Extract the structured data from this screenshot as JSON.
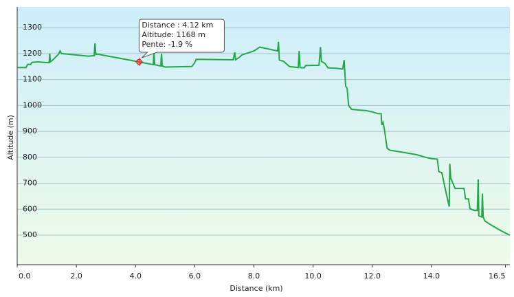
{
  "chart_data": {
    "type": "line",
    "xlabel": "Distance  (km)",
    "ylabel": "Altitude  (m)",
    "xlim": [
      0,
      16.65
    ],
    "ylim": [
      386,
      1380
    ],
    "xticks": [
      {
        "value": 0,
        "label": "0.0"
      },
      {
        "value": 2,
        "label": "2.0"
      },
      {
        "value": 4,
        "label": "4.0"
      },
      {
        "value": 6,
        "label": "6.0"
      },
      {
        "value": 8,
        "label": "8.0"
      },
      {
        "value": 10,
        "label": "10.0"
      },
      {
        "value": 12,
        "label": "12.0"
      },
      {
        "value": 14,
        "label": "14.0"
      },
      16.5
    ],
    "yticks": [
      500,
      600,
      700,
      800,
      900,
      1000,
      1100,
      1200,
      1300
    ],
    "grid": true,
    "x": [
      0,
      0.3,
      0.35,
      0.45,
      0.5,
      0.7,
      1.0,
      1.08,
      1.1,
      1.12,
      1.2,
      1.4,
      1.45,
      1.5,
      2.4,
      2.6,
      2.63,
      2.66,
      2.7,
      4.12,
      4.6,
      4.62,
      4.65,
      4.85,
      4.88,
      4.9,
      5.0,
      5.9,
      6.0,
      6.05,
      7.3,
      7.35,
      7.38,
      7.5,
      7.6,
      8.0,
      8.2,
      8.8,
      8.83,
      8.86,
      9.0,
      9.2,
      9.5,
      9.53,
      9.56,
      9.7,
      9.75,
      10.2,
      10.25,
      10.28,
      10.4,
      10.5,
      10.8,
      11.0,
      11.05,
      11.1,
      11.15,
      11.2,
      11.3,
      11.6,
      11.8,
      12.0,
      12.2,
      12.3,
      12.32,
      12.36,
      12.4,
      12.5,
      12.6,
      13.0,
      13.5,
      13.8,
      14.0,
      14.2,
      14.25,
      14.35,
      14.5,
      14.6,
      14.62,
      14.65,
      14.8,
      15.1,
      15.15,
      15.25,
      15.3,
      15.45,
      15.55,
      15.58,
      15.6,
      15.7,
      15.72,
      15.75,
      15.8,
      16.0,
      16.3,
      16.55,
      16.65
    ],
    "series": [
      {
        "color": "#22a84a",
        "values": [
          1146,
          1146,
          1158,
          1158,
          1166,
          1168,
          1165,
          1165,
          1200,
          1168,
          1175,
          1198,
          1210,
          1200,
          1190,
          1192,
          1240,
          1196,
          1198,
          1168,
          1157,
          1205,
          1157,
          1152,
          1200,
          1152,
          1148,
          1150,
          1165,
          1178,
          1176,
          1205,
          1176,
          1185,
          1195,
          1210,
          1225,
          1210,
          1245,
          1175,
          1170,
          1150,
          1146,
          1210,
          1146,
          1145,
          1154,
          1155,
          1225,
          1170,
          1162,
          1145,
          1143,
          1140,
          1175,
          1075,
          1065,
          1000,
          985,
          982,
          980,
          975,
          968,
          968,
          925,
          935,
          915,
          835,
          827,
          820,
          810,
          800,
          795,
          793,
          745,
          740,
          660,
          610,
          775,
          720,
          680,
          680,
          640,
          640,
          602,
          595,
          595,
          715,
          575,
          570,
          660,
          570,
          555,
          540,
          520,
          505,
          500
        ]
      }
    ],
    "tooltip": {
      "x": 4.12,
      "y": 1168,
      "lines": [
        "Distance : 4.12 km",
        "Altitude: 1168 m",
        "Pente: -1.9 %"
      ]
    }
  }
}
